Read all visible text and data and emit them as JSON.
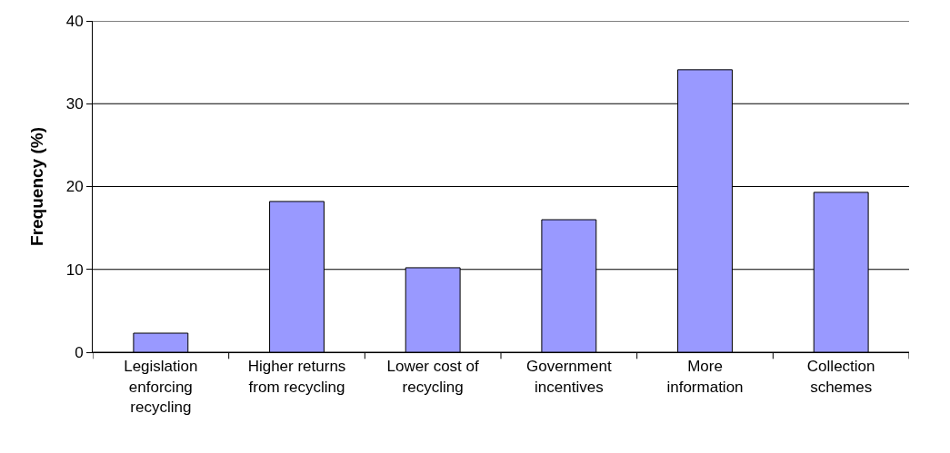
{
  "chart_data": {
    "type": "bar",
    "ylabel": "Frequency (%)",
    "categories": [
      "Legislation enforcing recycling",
      "Higher returns from recycling",
      "Lower cost of recycling",
      "Government incentives",
      "More information",
      "Collection schemes"
    ],
    "values": [
      2.3,
      18.2,
      10.2,
      16.0,
      34.1,
      19.3
    ],
    "color": "#9999ff",
    "ylim": [
      0,
      40
    ],
    "yticks": [
      0,
      10,
      20,
      30,
      40
    ],
    "grid": "y"
  }
}
